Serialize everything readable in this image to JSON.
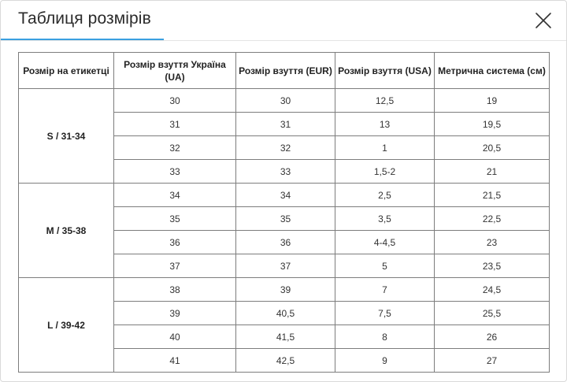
{
  "modal": {
    "title": "Таблиця розмірів",
    "close_icon": "close-icon",
    "accent_color": "#3aa0e0"
  },
  "table": {
    "headers": [
      "Розмір на етикетці",
      "Розмір взуття Україна (UA)",
      "Розмір взуття (EUR)",
      "Розмір взуття (USA)",
      "Метрична система (см)"
    ],
    "groups": [
      {
        "label": "S / 31-34",
        "rows": [
          [
            "30",
            "30",
            "12,5",
            "19"
          ],
          [
            "31",
            "31",
            "13",
            "19,5"
          ],
          [
            "32",
            "32",
            "1",
            "20,5"
          ],
          [
            "33",
            "33",
            "1,5-2",
            "21"
          ]
        ]
      },
      {
        "label": "M / 35-38",
        "rows": [
          [
            "34",
            "34",
            "2,5",
            "21,5"
          ],
          [
            "35",
            "35",
            "3,5",
            "22,5"
          ],
          [
            "36",
            "36",
            "4-4,5",
            "23"
          ],
          [
            "37",
            "37",
            "5",
            "23,5"
          ]
        ]
      },
      {
        "label": "L / 39-42",
        "rows": [
          [
            "38",
            "39",
            "7",
            "24,5"
          ],
          [
            "39",
            "40,5",
            "7,5",
            "25,5"
          ],
          [
            "40",
            "41,5",
            "8",
            "26"
          ],
          [
            "41",
            "42,5",
            "9",
            "27"
          ]
        ]
      }
    ]
  }
}
